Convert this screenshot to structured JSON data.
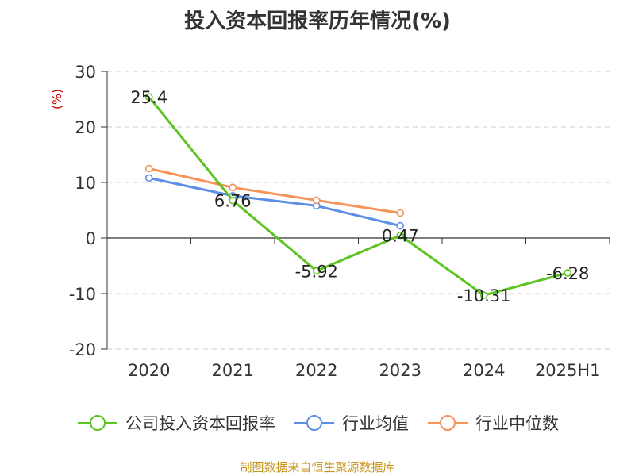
{
  "chart_data": {
    "type": "line",
    "title": "投入资本回报率历年情况(%)",
    "ylabel": "(%)",
    "categories": [
      "2020",
      "2021",
      "2022",
      "2023",
      "2024",
      "2025H1"
    ],
    "ylim": [
      -20,
      30
    ],
    "yticks": [
      30,
      20,
      10,
      0,
      -10,
      -20
    ],
    "grid": true,
    "legend_position": "bottom",
    "series": [
      {
        "name": "公司投入资本回报率",
        "color": "#5cc41e",
        "values": [
          25.4,
          6.76,
          -5.92,
          0.47,
          -10.31,
          -6.28
        ],
        "labels": [
          "25.4",
          "6.76",
          "-5.92",
          "0.47",
          "-10.31",
          "-6.28"
        ]
      },
      {
        "name": "行业均值",
        "color": "#5b8ee6",
        "values": [
          10.8,
          7.6,
          5.8,
          2.2,
          null,
          null
        ]
      },
      {
        "name": "行业中位数",
        "color": "#f79259",
        "values": [
          12.5,
          9.1,
          6.8,
          4.5,
          null,
          null
        ]
      }
    ]
  },
  "source_note": "制图数据来自恒生聚源数据库"
}
